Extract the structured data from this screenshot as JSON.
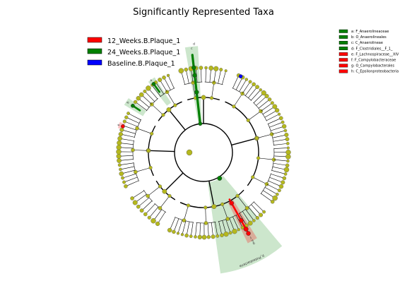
{
  "chart_data": {
    "type": "cladogram",
    "title": "Significantly Represented Taxa",
    "legend": {
      "placement": "top-left",
      "entries": [
        {
          "name": "12_Weeks.B.Plaque_1",
          "color": "#ff0000"
        },
        {
          "name": "24_Weeks.B.Plaque_1",
          "color": "#008000"
        },
        {
          "name": "Baseline.B.Plaque_1",
          "color": "#0000ff"
        }
      ]
    },
    "taxa_key": {
      "placement": "top-right",
      "entries": [
        {
          "label": "a: F_Anaerolineaceae",
          "group": "24_Weeks.B.Plaque_1"
        },
        {
          "label": "b: O_Anaerolineales",
          "group": "24_Weeks.B.Plaque_1"
        },
        {
          "label": "c: C_Anaerolineae",
          "group": "24_Weeks.B.Plaque_1"
        },
        {
          "label": "d: F_Clostridiales__F_1_",
          "group": "24_Weeks.B.Plaque_1"
        },
        {
          "label": "e: F_Lachnospiraceae__XIV",
          "group": "12_Weeks.B.Plaque_1"
        },
        {
          "label": "f: F_Campylobacteraceae",
          "group": "12_Weeks.B.Plaque_1"
        },
        {
          "label": "g: O_Campylobacterales",
          "group": "12_Weeks.B.Plaque_1"
        },
        {
          "label": "h: C_Epsilonproteobacteria",
          "group": "12_Weeks.B.Plaque_1"
        }
      ]
    },
    "clade_labels": [
      {
        "text": "c",
        "group": "24_Weeks.B.Plaque_1"
      },
      {
        "text": "b",
        "group": "24_Weeks.B.Plaque_1"
      },
      {
        "text": "a",
        "group": "24_Weeks.B.Plaque_1"
      },
      {
        "text": "d",
        "group": "24_Weeks.B.Plaque_1"
      },
      {
        "text": "e",
        "group": "12_Weeks.B.Plaque_1"
      },
      {
        "text": "f",
        "group": "12_Weeks.B.Plaque_1"
      },
      {
        "text": "g",
        "group": "12_Weeks.B.Plaque_1"
      },
      {
        "text": "h",
        "group": "12_Weeks.B.Plaque_1"
      },
      {
        "text": "p_Proteobacteria",
        "group": "24_Weeks.B.Plaque_1"
      }
    ],
    "colors": {
      "node_default": "#b5b81e",
      "edge": "#000000"
    }
  }
}
